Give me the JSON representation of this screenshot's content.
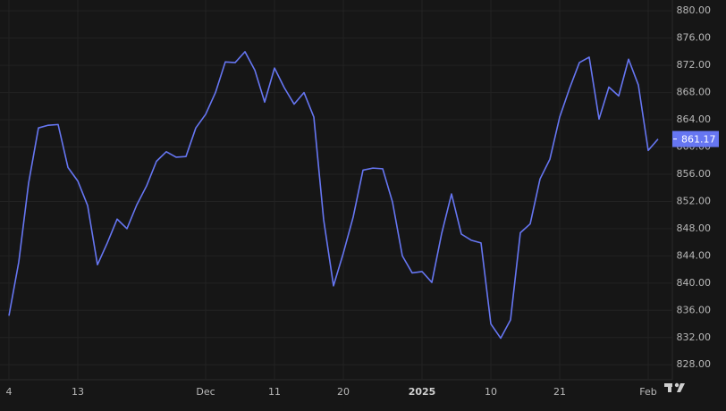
{
  "chart_data": {
    "type": "line",
    "categories": [
      "4",
      null,
      null,
      null,
      null,
      null,
      null,
      "13",
      null,
      null,
      null,
      null,
      null,
      null,
      null,
      null,
      null,
      null,
      null,
      null,
      "Dec",
      null,
      null,
      null,
      null,
      null,
      null,
      "11",
      null,
      null,
      null,
      null,
      null,
      null,
      "20",
      null,
      null,
      null,
      null,
      null,
      null,
      null,
      "2025",
      null,
      null,
      null,
      null,
      null,
      null,
      "10",
      null,
      null,
      null,
      null,
      null,
      null,
      "21",
      null,
      null,
      null,
      null,
      null,
      null,
      null,
      null,
      "Feb",
      null
    ],
    "series": [
      {
        "color": "#6676f2",
        "values": [
          835.2,
          843.1,
          854.7,
          862.8,
          863.2,
          863.3,
          857.0,
          855.0,
          851.4,
          842.7,
          845.9,
          849.4,
          848.0,
          851.5,
          854.3,
          857.9,
          859.3,
          858.5,
          858.6,
          862.8,
          864.8,
          868.0,
          872.5,
          872.4,
          874.0,
          871.3,
          866.6,
          871.6,
          868.7,
          866.3,
          868.0,
          864.4,
          849.3,
          839.6,
          844.4,
          849.7,
          856.6,
          856.9,
          856.8,
          851.9,
          844.0,
          841.5,
          841.7,
          840.1,
          847.3,
          853.1,
          847.2,
          846.3,
          845.9,
          834.0,
          831.9,
          834.6,
          847.4,
          848.7,
          855.3,
          858.2,
          864.4,
          868.6,
          872.4,
          873.2,
          864.1,
          868.8,
          867.5,
          872.9,
          869.1,
          859.5,
          861.17
        ]
      }
    ],
    "ylim": [
      825.8,
      881.6
    ],
    "yticks": [
      {
        "value": 828,
        "label": "828.00"
      },
      {
        "value": 832,
        "label": "832.00"
      },
      {
        "value": 836,
        "label": "836.00"
      },
      {
        "value": 840,
        "label": "840.00"
      },
      {
        "value": 844,
        "label": "844.00"
      },
      {
        "value": 848,
        "label": "848.00"
      },
      {
        "value": 852,
        "label": "852.00"
      },
      {
        "value": 856,
        "label": "856.00"
      },
      {
        "value": 860,
        "label": "860.00"
      },
      {
        "value": 864,
        "label": "864.00"
      },
      {
        "value": 868,
        "label": "868.00"
      },
      {
        "value": 872,
        "label": "872.00"
      },
      {
        "value": 876,
        "label": "876.00"
      },
      {
        "value": 880,
        "label": "880.00"
      }
    ],
    "grid": true
  }
}
